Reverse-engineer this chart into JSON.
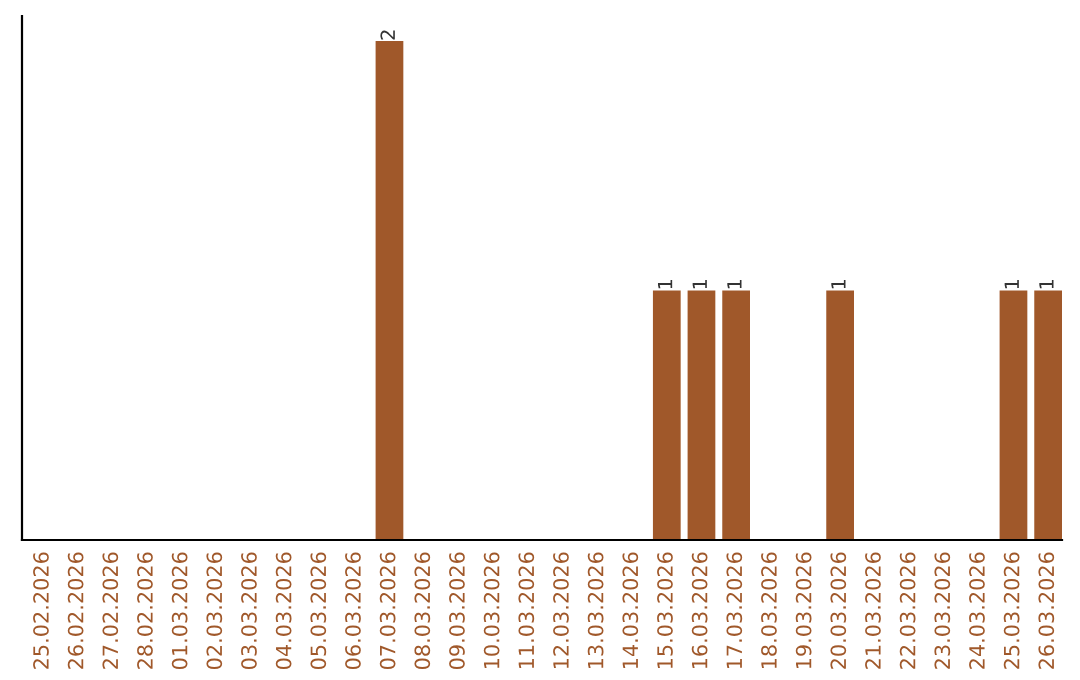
{
  "chart_data": {
    "type": "bar",
    "categories": [
      "25.02.2026",
      "26.02.2026",
      "27.02.2026",
      "28.02.2026",
      "01.03.2026",
      "02.03.2026",
      "03.03.2026",
      "04.03.2026",
      "05.03.2026",
      "06.03.2026",
      "07.03.2026",
      "08.03.2026",
      "09.03.2026",
      "10.03.2026",
      "11.03.2026",
      "12.03.2026",
      "13.03.2026",
      "14.03.2026",
      "15.03.2026",
      "16.03.2026",
      "17.03.2026",
      "18.03.2026",
      "19.03.2026",
      "20.03.2026",
      "21.03.2026",
      "22.03.2026",
      "23.03.2026",
      "24.03.2026",
      "25.03.2026",
      "26.03.2026"
    ],
    "values": [
      0,
      0,
      0,
      0,
      0,
      0,
      0,
      0,
      0,
      0,
      2,
      0,
      0,
      0,
      0,
      0,
      0,
      0,
      1,
      1,
      1,
      0,
      0,
      1,
      0,
      0,
      0,
      0,
      1,
      1
    ],
    "value_labels": [
      null,
      null,
      null,
      null,
      null,
      null,
      null,
      null,
      null,
      null,
      "2",
      null,
      null,
      null,
      null,
      null,
      null,
      null,
      "1",
      "1",
      "1",
      null,
      null,
      "1",
      null,
      null,
      null,
      null,
      "1",
      "1"
    ],
    "color": "#a0582a",
    "grid": false,
    "legend": false
  }
}
